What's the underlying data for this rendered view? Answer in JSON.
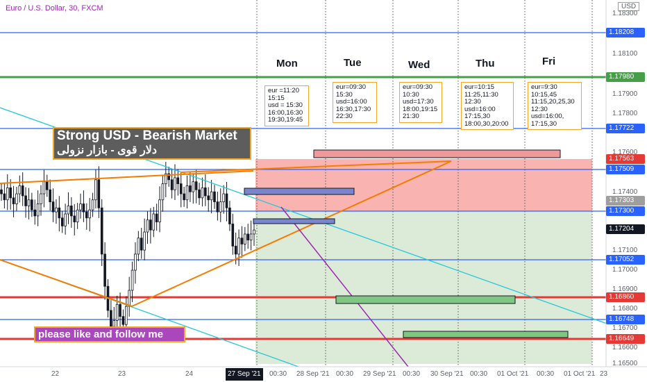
{
  "symbol_title": "Euro / U.S. Dollar, 30, FXCM",
  "currency": "USD",
  "annotation_main": "Strong USD - Bearish Market",
  "annotation_persian": "دلار قوی - بازار نزولی",
  "like_text": "please like and follow me",
  "days": [
    {
      "name": "Mon",
      "schedule": "eur =11:20\n15:15\nusd = 15:30\n16:00,16:30\n19:30,19:45"
    },
    {
      "name": "Tue",
      "schedule": "eur=09:30\n15:30\nusd=16:00\n16:30,17:30\n22:30"
    },
    {
      "name": "Wed",
      "schedule": "eur=09:30\n10:30\nusd=17:30\n18:00,19:15\n21:30"
    },
    {
      "name": "Thu",
      "schedule": "eur=10:15\n11:25,11:30\n12:30\nusd=16:00\n17:15,30\n18:00,30,20:00"
    },
    {
      "name": "Fri",
      "schedule": "eur=9:30\n10:15,45\n11:15,20,25,30\n12:30\nusd=16:00,\n17:15,30"
    }
  ],
  "chart_data": {
    "type": "line",
    "symbol": "EURUSD",
    "timeframe": "30",
    "y_axis": {
      "ticks": [
        "1.18300",
        "1.18100",
        "1.17900",
        "1.17800",
        "1.17600",
        "1.17400",
        "1.17100",
        "1.17000",
        "1.16900",
        "1.16800",
        "1.16700",
        "1.16600",
        "1.16500"
      ],
      "range": [
        1.165,
        1.1834
      ]
    },
    "x_axis": {
      "labels": [
        "22",
        "23",
        "24",
        "27 Sep '21",
        "00:30",
        "28 Sep '21",
        "00:30",
        "29 Sep '21",
        "00:30",
        "30 Sep '21",
        "00:30",
        "01 Oct '21",
        "00:30",
        "01 Oct '21",
        "23"
      ]
    },
    "price_labels": [
      {
        "value": "1.18208",
        "color": "#2962ff"
      },
      {
        "value": "1.17980",
        "color": "#43a047"
      },
      {
        "value": "1.17722",
        "color": "#2962ff"
      },
      {
        "value": "1.17563",
        "color": "#e53935"
      },
      {
        "value": "1.17509",
        "color": "#2962ff"
      },
      {
        "value": "1.17303",
        "color": "#9e9e9e"
      },
      {
        "value": "1.17300",
        "color": "#2962ff"
      },
      {
        "value": "1.17204",
        "color": "#131722"
      },
      {
        "value": "1.17052",
        "color": "#2962ff"
      },
      {
        "value": "1.16860",
        "color": "#e53935"
      },
      {
        "value": "1.16748",
        "color": "#2962ff"
      },
      {
        "value": "1.16649",
        "color": "#e53935"
      }
    ],
    "close_prices": [
      1.1738,
      1.1735,
      1.1741,
      1.1736,
      1.1733,
      1.1738,
      1.1742,
      1.1737,
      1.1732,
      1.1735,
      1.173,
      1.1727,
      1.1733,
      1.1738,
      1.1744,
      1.174,
      1.1734,
      1.1729,
      1.1731,
      1.1726,
      1.1722,
      1.1728,
      1.1732,
      1.1727,
      1.1724,
      1.173,
      1.1733,
      1.1729,
      1.1726,
      1.173,
      1.1735,
      1.1745,
      1.1731,
      1.1708,
      1.1692,
      1.168,
      1.1672,
      1.1675,
      1.1683,
      1.1677,
      1.1673,
      1.1682,
      1.169,
      1.17,
      1.1708,
      1.1716,
      1.171,
      1.1719,
      1.1725,
      1.172,
      1.1728,
      1.1724,
      1.1735,
      1.1743,
      1.1748,
      1.1745,
      1.174,
      1.1746,
      1.1743,
      1.1738,
      1.1735,
      1.1742,
      1.1739,
      1.1744,
      1.174,
      1.1736,
      1.1741,
      1.1737,
      1.1735,
      1.1739,
      1.1734,
      1.1729,
      1.1734,
      1.1738,
      1.1731,
      1.1723,
      1.1712,
      1.1708,
      1.1716,
      1.1713,
      1.1718,
      1.1715,
      1.1718,
      1.172
    ]
  }
}
